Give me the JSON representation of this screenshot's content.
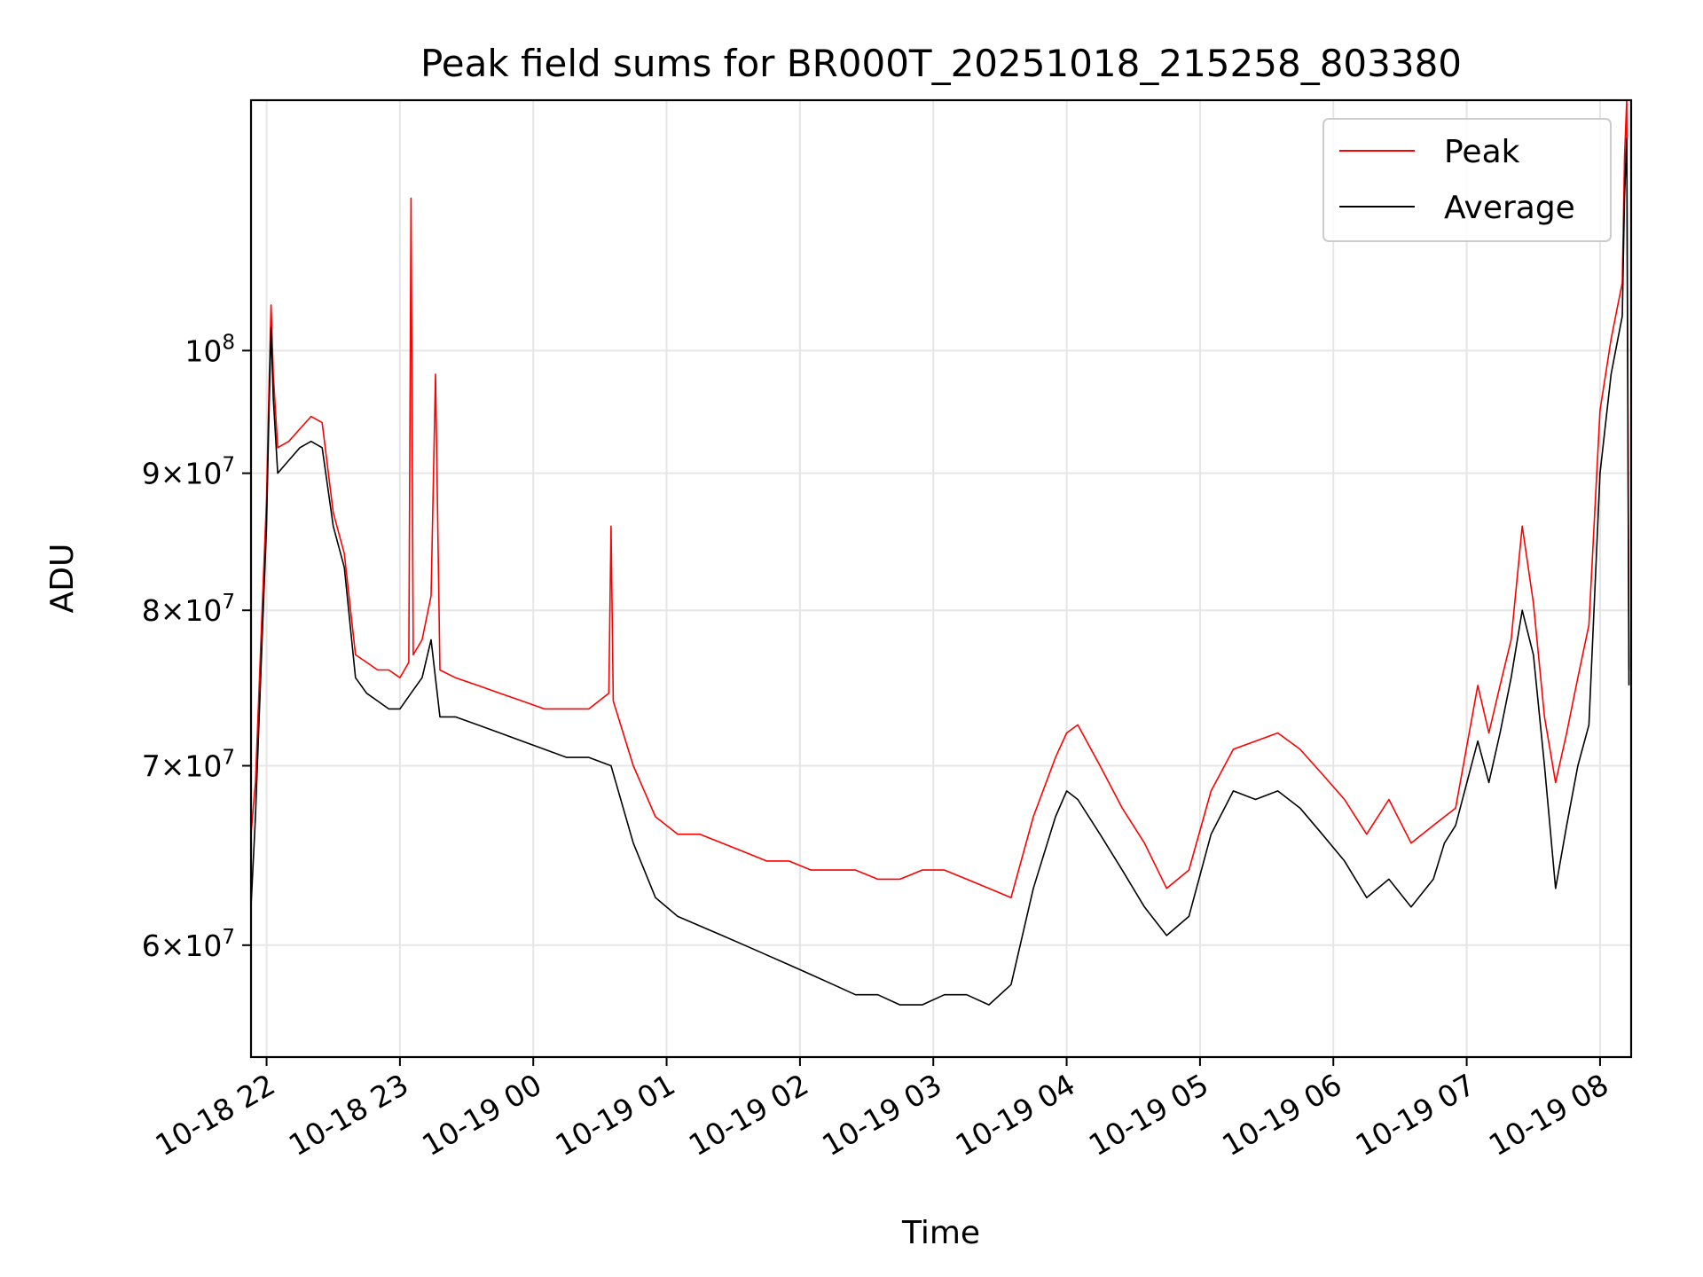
{
  "chart_data": {
    "type": "line",
    "title": "Peak field sums for BR000T_20251018_215258_803380",
    "xlabel": "Time",
    "ylabel": "ADU",
    "yscale": "log",
    "xlim": [
      "2025-10-18T21:53",
      "2025-10-19T08:14"
    ],
    "ylim": [
      54500000,
      124000000
    ],
    "x_ticks": [
      "10-18 22",
      "10-18 23",
      "10-19 00",
      "10-19 01",
      "10-19 02",
      "10-19 03",
      "10-19 04",
      "10-19 05",
      "10-19 06",
      "10-19 07",
      "10-19 08"
    ],
    "y_ticks": [
      {
        "value": 60000000,
        "mantissa": "6",
        "exponent": "7"
      },
      {
        "value": 70000000,
        "mantissa": "7",
        "exponent": "7"
      },
      {
        "value": 80000000,
        "mantissa": "8",
        "exponent": "7"
      },
      {
        "value": 90000000,
        "mantissa": "9",
        "exponent": "7"
      },
      {
        "value": 100000000,
        "mantissa": "",
        "exponent": "8"
      }
    ],
    "grid": true,
    "legend": "top-right",
    "series": [
      {
        "name": "Peak",
        "color": "#ff0000",
        "x": [
          "2025-10-18T21:53",
          "2025-10-18T21:55",
          "2025-10-18T21:58",
          "2025-10-18T22:00",
          "2025-10-18T22:01",
          "2025-10-18T22:02",
          "2025-10-18T22:03",
          "2025-10-18T22:05",
          "2025-10-18T22:10",
          "2025-10-18T22:15",
          "2025-10-18T22:20",
          "2025-10-18T22:25",
          "2025-10-18T22:30",
          "2025-10-18T22:35",
          "2025-10-18T22:40",
          "2025-10-18T22:45",
          "2025-10-18T22:50",
          "2025-10-18T22:55",
          "2025-10-18T23:00",
          "2025-10-18T23:04",
          "2025-10-18T23:05",
          "2025-10-18T23:06",
          "2025-10-18T23:10",
          "2025-10-18T23:14",
          "2025-10-18T23:16",
          "2025-10-18T23:18",
          "2025-10-18T23:25",
          "2025-10-18T23:35",
          "2025-10-18T23:45",
          "2025-10-18T23:55",
          "2025-10-19T00:05",
          "2025-10-19T00:15",
          "2025-10-19T00:25",
          "2025-10-19T00:34",
          "2025-10-19T00:35",
          "2025-10-19T00:36",
          "2025-10-19T00:45",
          "2025-10-19T00:55",
          "2025-10-19T01:05",
          "2025-10-19T01:15",
          "2025-10-19T01:25",
          "2025-10-19T01:35",
          "2025-10-19T01:45",
          "2025-10-19T01:55",
          "2025-10-19T02:05",
          "2025-10-19T02:15",
          "2025-10-19T02:25",
          "2025-10-19T02:35",
          "2025-10-19T02:45",
          "2025-10-19T02:55",
          "2025-10-19T03:05",
          "2025-10-19T03:15",
          "2025-10-19T03:25",
          "2025-10-19T03:35",
          "2025-10-19T03:45",
          "2025-10-19T03:55",
          "2025-10-19T04:00",
          "2025-10-19T04:05",
          "2025-10-19T04:15",
          "2025-10-19T04:25",
          "2025-10-19T04:35",
          "2025-10-19T04:45",
          "2025-10-19T04:55",
          "2025-10-19T05:05",
          "2025-10-19T05:15",
          "2025-10-19T05:25",
          "2025-10-19T05:35",
          "2025-10-19T05:45",
          "2025-10-19T05:55",
          "2025-10-19T06:05",
          "2025-10-19T06:15",
          "2025-10-19T06:25",
          "2025-10-19T06:35",
          "2025-10-19T06:45",
          "2025-10-19T06:50",
          "2025-10-19T06:55",
          "2025-10-19T07:05",
          "2025-10-19T07:10",
          "2025-10-19T07:15",
          "2025-10-19T07:20",
          "2025-10-19T07:25",
          "2025-10-19T07:30",
          "2025-10-19T07:35",
          "2025-10-19T07:40",
          "2025-10-19T07:45",
          "2025-10-19T07:50",
          "2025-10-19T07:55",
          "2025-10-19T08:00",
          "2025-10-19T08:05",
          "2025-10-19T08:08",
          "2025-10-19T08:10",
          "2025-10-19T08:11",
          "2025-10-19T08:12",
          "2025-10-19T08:13"
        ],
        "values": [
          66000000,
          69000000,
          80000000,
          88000000,
          96000000,
          104000000,
          98000000,
          92000000,
          92500000,
          93500000,
          94500000,
          94000000,
          87000000,
          84000000,
          77000000,
          76500000,
          76000000,
          76000000,
          75500000,
          76500000,
          114000000,
          77000000,
          78000000,
          81000000,
          98000000,
          76000000,
          75500000,
          75000000,
          74500000,
          74000000,
          73500000,
          73500000,
          73500000,
          74500000,
          86000000,
          74000000,
          70000000,
          67000000,
          66000000,
          66000000,
          65500000,
          65000000,
          64500000,
          64500000,
          64000000,
          64000000,
          64000000,
          63500000,
          63500000,
          64000000,
          64000000,
          63500000,
          63000000,
          62500000,
          67000000,
          70500000,
          72000000,
          72500000,
          70000000,
          67500000,
          65500000,
          63000000,
          64000000,
          68500000,
          71000000,
          71500000,
          72000000,
          71000000,
          69500000,
          68000000,
          66000000,
          68000000,
          65500000,
          66500000,
          67000000,
          67500000,
          75000000,
          72000000,
          75000000,
          78000000,
          86000000,
          80500000,
          73000000,
          69000000,
          72000000,
          75500000,
          79000000,
          95000000,
          101000000,
          104000000,
          106000000,
          118000000,
          124000000,
          76000000
        ]
      },
      {
        "name": "Average",
        "color": "#000000",
        "x": [
          "2025-10-18T21:53",
          "2025-10-18T21:55",
          "2025-10-18T21:58",
          "2025-10-18T22:00",
          "2025-10-18T22:01",
          "2025-10-18T22:02",
          "2025-10-18T22:03",
          "2025-10-18T22:05",
          "2025-10-18T22:10",
          "2025-10-18T22:15",
          "2025-10-18T22:20",
          "2025-10-18T22:25",
          "2025-10-18T22:30",
          "2025-10-18T22:35",
          "2025-10-18T22:40",
          "2025-10-18T22:45",
          "2025-10-18T22:50",
          "2025-10-18T22:55",
          "2025-10-18T23:00",
          "2025-10-18T23:05",
          "2025-10-18T23:10",
          "2025-10-18T23:14",
          "2025-10-18T23:18",
          "2025-10-18T23:25",
          "2025-10-18T23:35",
          "2025-10-18T23:45",
          "2025-10-18T23:55",
          "2025-10-19T00:05",
          "2025-10-19T00:15",
          "2025-10-19T00:25",
          "2025-10-19T00:35",
          "2025-10-19T00:45",
          "2025-10-19T00:55",
          "2025-10-19T01:05",
          "2025-10-19T01:15",
          "2025-10-19T01:25",
          "2025-10-19T01:35",
          "2025-10-19T01:45",
          "2025-10-19T01:55",
          "2025-10-19T02:05",
          "2025-10-19T02:15",
          "2025-10-19T02:25",
          "2025-10-19T02:35",
          "2025-10-19T02:45",
          "2025-10-19T02:55",
          "2025-10-19T03:05",
          "2025-10-19T03:15",
          "2025-10-19T03:25",
          "2025-10-19T03:35",
          "2025-10-19T03:45",
          "2025-10-19T03:55",
          "2025-10-19T04:00",
          "2025-10-19T04:05",
          "2025-10-19T04:15",
          "2025-10-19T04:25",
          "2025-10-19T04:35",
          "2025-10-19T04:45",
          "2025-10-19T04:55",
          "2025-10-19T05:05",
          "2025-10-19T05:15",
          "2025-10-19T05:25",
          "2025-10-19T05:35",
          "2025-10-19T05:45",
          "2025-10-19T05:55",
          "2025-10-19T06:05",
          "2025-10-19T06:15",
          "2025-10-19T06:25",
          "2025-10-19T06:35",
          "2025-10-19T06:45",
          "2025-10-19T06:50",
          "2025-10-19T06:55",
          "2025-10-19T07:05",
          "2025-10-19T07:10",
          "2025-10-19T07:15",
          "2025-10-19T07:20",
          "2025-10-19T07:25",
          "2025-10-19T07:30",
          "2025-10-19T07:35",
          "2025-10-19T07:40",
          "2025-10-19T07:45",
          "2025-10-19T07:50",
          "2025-10-19T07:55",
          "2025-10-19T08:00",
          "2025-10-19T08:05",
          "2025-10-19T08:08",
          "2025-10-19T08:10",
          "2025-10-19T08:11",
          "2025-10-19T08:12",
          "2025-10-19T08:13"
        ],
        "values": [
          62000000,
          67000000,
          78000000,
          86000000,
          94000000,
          102000000,
          96000000,
          90000000,
          91000000,
          92000000,
          92500000,
          92000000,
          86000000,
          83000000,
          75500000,
          74500000,
          74000000,
          73500000,
          73500000,
          74500000,
          75500000,
          78000000,
          73000000,
          73000000,
          72500000,
          72000000,
          71500000,
          71000000,
          70500000,
          70500000,
          70000000,
          65500000,
          62500000,
          61500000,
          61000000,
          60500000,
          60000000,
          59500000,
          59000000,
          58500000,
          58000000,
          57500000,
          57500000,
          57000000,
          57000000,
          57500000,
          57500000,
          57000000,
          58000000,
          63000000,
          67000000,
          68500000,
          68000000,
          66000000,
          64000000,
          62000000,
          60500000,
          61500000,
          66000000,
          68500000,
          68000000,
          68500000,
          67500000,
          66000000,
          64500000,
          62500000,
          63500000,
          62000000,
          63500000,
          65500000,
          66500000,
          71500000,
          69000000,
          72000000,
          75500000,
          80000000,
          77000000,
          70000000,
          63000000,
          66500000,
          70000000,
          72500000,
          90000000,
          98000000,
          101000000,
          103000000,
          114000000,
          120000000,
          75000000
        ]
      }
    ]
  }
}
